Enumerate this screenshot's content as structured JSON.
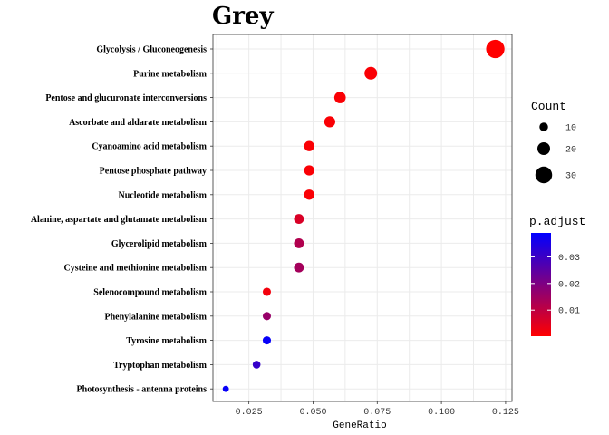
{
  "chart_data": {
    "type": "scatter",
    "title": "Grey",
    "xlabel": "GeneRatio",
    "ylabel": "",
    "xlim": [
      0.011,
      0.1275
    ],
    "xticks": [
      0.025,
      0.05,
      0.075,
      0.1,
      0.125
    ],
    "xtick_labels": [
      "0.025",
      "0.050",
      "0.075",
      "0.100",
      "0.125"
    ],
    "grid": true,
    "categories": [
      "Glycolysis / Gluconeogenesis",
      "Purine metabolism",
      "Pentose and glucuronate interconversions",
      "Ascorbate and aldarate metabolism",
      "Cyanoamino acid metabolism",
      "Pentose phosphate pathway",
      "Nucleotide metabolism",
      "Alanine, aspartate and glutamate metabolism",
      "Glycerolipid metabolism",
      "Cysteine and methionine metabolism",
      "Selenocompound metabolism",
      "Phenylalanine metabolism",
      "Tyrosine metabolism",
      "Tryptophan metabolism",
      "Photosynthesis - antenna proteins"
    ],
    "points": [
      {
        "category": "Glycolysis / Gluconeogenesis",
        "gene_ratio": 0.121,
        "count": 34,
        "p_adjust": 0.0002
      },
      {
        "category": "Purine metabolism",
        "gene_ratio": 0.0725,
        "count": 20,
        "p_adjust": 0.001
      },
      {
        "category": "Pentose and glucuronate interconversions",
        "gene_ratio": 0.0605,
        "count": 17,
        "p_adjust": 0.001
      },
      {
        "category": "Ascorbate and aldarate metabolism",
        "gene_ratio": 0.0565,
        "count": 16,
        "p_adjust": 0.001
      },
      {
        "category": "Cyanoamino acid metabolism",
        "gene_ratio": 0.0485,
        "count": 14,
        "p_adjust": 0.001
      },
      {
        "category": "Pentose phosphate pathway",
        "gene_ratio": 0.0485,
        "count": 14,
        "p_adjust": 0.001
      },
      {
        "category": "Nucleotide metabolism",
        "gene_ratio": 0.0485,
        "count": 14,
        "p_adjust": 0.001
      },
      {
        "category": "Alanine, aspartate and glutamate metabolism",
        "gene_ratio": 0.0445,
        "count": 13,
        "p_adjust": 0.006
      },
      {
        "category": "Glycerolipid metabolism",
        "gene_ratio": 0.0445,
        "count": 13,
        "p_adjust": 0.012
      },
      {
        "category": "Cysteine and methionine metabolism",
        "gene_ratio": 0.0445,
        "count": 13,
        "p_adjust": 0.014
      },
      {
        "category": "Selenocompound metabolism",
        "gene_ratio": 0.032,
        "count": 9,
        "p_adjust": 0.002
      },
      {
        "category": "Phenylalanine metabolism",
        "gene_ratio": 0.032,
        "count": 9,
        "p_adjust": 0.016
      },
      {
        "category": "Tyrosine metabolism",
        "gene_ratio": 0.032,
        "count": 9,
        "p_adjust": 0.038
      },
      {
        "category": "Tryptophan metabolism",
        "gene_ratio": 0.028,
        "count": 8,
        "p_adjust": 0.031
      },
      {
        "category": "Photosynthesis - antenna proteins",
        "gene_ratio": 0.016,
        "count": 4,
        "p_adjust": 0.038
      }
    ],
    "size_legend": {
      "title": "Count",
      "values": [
        10,
        20,
        30
      ],
      "labels": [
        "10",
        "20",
        "30"
      ]
    },
    "color_legend": {
      "title": "p.adjust",
      "min": 0.0002,
      "max": 0.039,
      "ticks": [
        0.01,
        0.02,
        0.03
      ],
      "tick_labels": [
        "0.01",
        "0.02",
        "0.03"
      ],
      "low_color": "#FF0000",
      "high_color": "#0000FF"
    },
    "legend_position": "right"
  }
}
